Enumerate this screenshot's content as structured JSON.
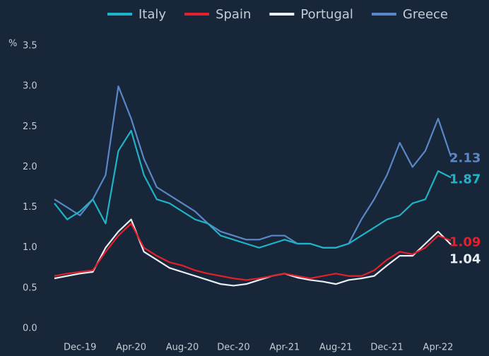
{
  "chart_data": {
    "type": "line",
    "y_unit": "%",
    "categories": [
      null,
      null,
      "Dec-19",
      null,
      null,
      null,
      "Apr-20",
      null,
      null,
      null,
      "Aug-20",
      null,
      null,
      null,
      "Dec-20",
      null,
      null,
      null,
      "Apr-21",
      null,
      null,
      null,
      "Aug-21",
      null,
      null,
      null,
      "Dec-21",
      null,
      null,
      null,
      "Apr-22",
      null
    ],
    "series": [
      {
        "name": "Italy",
        "color": "#1fb3c8",
        "values": [
          1.55,
          1.35,
          1.45,
          1.6,
          1.3,
          2.2,
          2.45,
          1.9,
          1.6,
          1.55,
          1.45,
          1.35,
          1.3,
          1.15,
          1.1,
          1.05,
          1.0,
          1.05,
          1.1,
          1.05,
          1.05,
          1.0,
          1.0,
          1.05,
          1.15,
          1.25,
          1.35,
          1.4,
          1.55,
          1.6,
          1.95,
          1.87
        ]
      },
      {
        "name": "Spain",
        "color": "#e3202b",
        "values": [
          0.65,
          0.68,
          0.7,
          0.72,
          0.95,
          1.15,
          1.3,
          1.0,
          0.9,
          0.82,
          0.78,
          0.72,
          0.68,
          0.65,
          0.62,
          0.6,
          0.62,
          0.65,
          0.68,
          0.65,
          0.62,
          0.65,
          0.68,
          0.65,
          0.65,
          0.72,
          0.85,
          0.95,
          0.92,
          1.0,
          1.15,
          1.09
        ]
      },
      {
        "name": "Portugal",
        "color": "#e8eef4",
        "values": [
          0.62,
          0.65,
          0.68,
          0.7,
          1.0,
          1.2,
          1.35,
          0.95,
          0.85,
          0.75,
          0.7,
          0.65,
          0.6,
          0.55,
          0.53,
          0.55,
          0.6,
          0.65,
          0.68,
          0.63,
          0.6,
          0.58,
          0.55,
          0.6,
          0.62,
          0.65,
          0.78,
          0.9,
          0.9,
          1.05,
          1.2,
          1.04
        ]
      },
      {
        "name": "Greece",
        "color": "#5a87c8",
        "values": [
          1.6,
          1.5,
          1.4,
          1.6,
          1.9,
          3.0,
          2.6,
          2.1,
          1.75,
          1.65,
          1.55,
          1.45,
          1.3,
          1.2,
          1.15,
          1.1,
          1.1,
          1.15,
          1.15,
          1.05,
          1.05,
          1.0,
          1.0,
          1.05,
          1.35,
          1.6,
          1.9,
          2.3,
          2.0,
          2.2,
          2.6,
          2.13
        ]
      }
    ],
    "ylim": [
      0,
      3.5
    ],
    "yticks": [
      {
        "value": 0,
        "label": "0.0"
      },
      0.5,
      {
        "value": 1,
        "label": "1.0"
      },
      1.5,
      {
        "value": 2,
        "label": "2.0"
      },
      2.5,
      {
        "value": 3,
        "label": "3.0"
      },
      3.5
    ],
    "legend": "top",
    "end_labels": true
  }
}
